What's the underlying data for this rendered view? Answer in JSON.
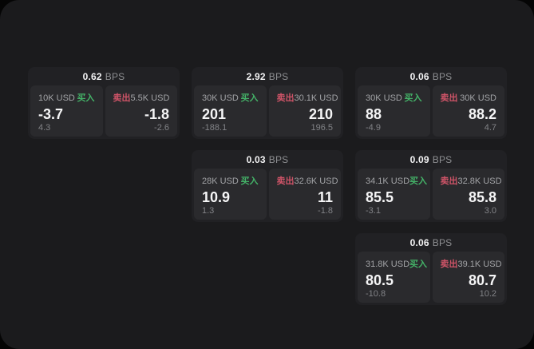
{
  "labels": {
    "bps_unit": "BPS",
    "buy": "买入",
    "sell": "卖出"
  },
  "colors": {
    "background": "#050505",
    "panel_bg": "#1b1b1d",
    "card_bg": "#212124",
    "cell_bg": "#2a2a2d",
    "buy_green": "#44b368",
    "sell_red": "#d05468",
    "value_white": "#f5f5f6",
    "label_gray": "#a2a3a6",
    "sub_gray": "#828387"
  },
  "cards": [
    {
      "bps": "0.62",
      "buy": {
        "size": "10K USD",
        "price": "-3.7",
        "sub": "4.3"
      },
      "sell": {
        "size": "5.5K USD",
        "price": "-1.8",
        "sub": "-2.6"
      }
    },
    {
      "bps": "2.92",
      "buy": {
        "size": "30K USD",
        "price": "201",
        "sub": "-188.1"
      },
      "sell": {
        "size": "30.1K USD",
        "price": "210",
        "sub": "196.5"
      }
    },
    {
      "bps": "0.06",
      "buy": {
        "size": "30K USD",
        "price": "88",
        "sub": "-4.9"
      },
      "sell": {
        "size": "30K USD",
        "price": "88.2",
        "sub": "4.7"
      }
    },
    {
      "bps": "0.03",
      "buy": {
        "size": "28K USD",
        "price": "10.9",
        "sub": "1.3"
      },
      "sell": {
        "size": "32.6K USD",
        "price": "11",
        "sub": "-1.8"
      }
    },
    {
      "bps": "0.09",
      "buy": {
        "size": "34.1K USD",
        "price": "85.5",
        "sub": "-3.1"
      },
      "sell": {
        "size": "32.8K USD",
        "price": "85.8",
        "sub": "3.0"
      }
    },
    {
      "bps": "0.06",
      "buy": {
        "size": "31.8K USD",
        "price": "80.5",
        "sub": "-10.8"
      },
      "sell": {
        "size": "39.1K USD",
        "price": "80.7",
        "sub": "10.2"
      }
    }
  ]
}
